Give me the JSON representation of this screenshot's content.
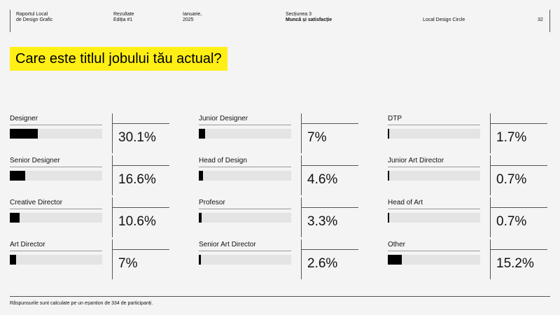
{
  "header": {
    "report_title": [
      "Raportul Local",
      "de Design Grafic"
    ],
    "results": [
      "Rezultate",
      "Ediția #1"
    ],
    "date": [
      "Ianuarie,",
      "2025"
    ],
    "section_label": "Secțiunea 3",
    "section_title": "Muncă și satisfacție",
    "org": "Local Design Circle",
    "page_number": "32"
  },
  "question": "Care este titlul jobului tău actual?",
  "footer_note": "Răspunsurile sunt calculate pe un eșantion de 334 de participanți.",
  "colors": {
    "accent": "#ffef14",
    "bar": "#000000",
    "track": "#e4e4e4",
    "background": "#f4f4f4"
  },
  "chart_data": {
    "type": "bar",
    "title": "Care este titlul jobului tău actual?",
    "categories": [
      "Designer",
      "Senior Designer",
      "Creative Director",
      "Art Director",
      "Junior Designer",
      "Head of Design",
      "Profesor",
      "Senior Art Director",
      "DTP",
      "Junior Art Director",
      "Head of Art",
      "Other"
    ],
    "values": [
      30.1,
      16.6,
      10.6,
      7,
      7,
      4.6,
      3.3,
      2.6,
      1.7,
      0.7,
      0.7,
      15.2
    ],
    "value_labels": [
      "30.1%",
      "16.6%",
      "10.6%",
      "7%",
      "7%",
      "4.6%",
      "3.3%",
      "2.6%",
      "1.7%",
      "0.7%",
      "0.7%",
      "15.2%"
    ],
    "unit": "%",
    "ylim": [
      0,
      100
    ]
  }
}
